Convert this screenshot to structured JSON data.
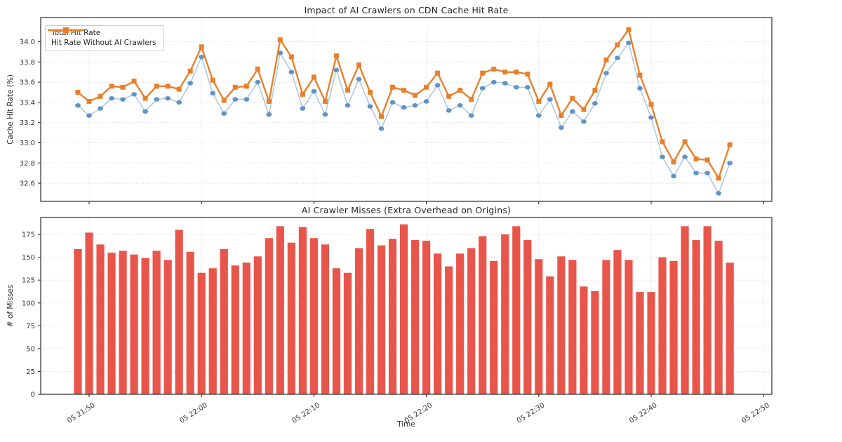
{
  "figure": {
    "background": "#ffffff",
    "spine_color": "#2a2a2a",
    "grid_color": "#c4c4c4",
    "tick_label_color": "#333333"
  },
  "chart_data": [
    {
      "type": "line",
      "title": "Impact of AI Crawlers on CDN Cache Hit Rate",
      "ylabel": "Cache Hit Rate (%)",
      "ylim": [
        32.42,
        34.24
      ],
      "yticks": [
        32.6,
        32.8,
        33.0,
        33.2,
        33.4,
        33.6,
        33.8,
        34.0
      ],
      "ytick_labels": [
        "32.6",
        "32.8",
        "33.0",
        "33.2",
        "33.4",
        "33.6",
        "33.8",
        "34.0"
      ],
      "x_tick_positions": [
        1,
        11,
        21,
        31,
        41,
        51,
        61
      ],
      "x_tick_labels": [
        "05 21:50",
        "05 22:00",
        "05 22:10",
        "05 22:20",
        "05 22:30",
        "05 22:40",
        "05 22:50"
      ],
      "grid": true,
      "legend_position": "upper left",
      "series": [
        {
          "name": "Total Hit Rate",
          "marker": "circle",
          "line_color": "#a5c3de",
          "marker_color": "#5f94c8",
          "line_width": 1.4,
          "values": [
            33.37,
            33.27,
            33.34,
            33.44,
            33.43,
            33.48,
            33.31,
            33.43,
            33.44,
            33.4,
            33.59,
            33.85,
            33.49,
            33.29,
            33.43,
            33.43,
            33.6,
            33.28,
            33.89,
            33.7,
            33.34,
            33.51,
            33.28,
            33.72,
            33.37,
            33.63,
            33.36,
            33.14,
            33.4,
            33.35,
            33.37,
            33.41,
            33.57,
            33.32,
            33.37,
            33.27,
            33.54,
            33.6,
            33.59,
            33.55,
            33.55,
            33.27,
            33.43,
            33.15,
            33.31,
            33.21,
            33.39,
            33.69,
            33.84,
            33.99,
            33.54,
            33.25,
            32.86,
            32.67,
            32.86,
            32.7,
            32.7,
            32.5,
            32.8
          ]
        },
        {
          "name": "Hit Rate Without AI Crawlers",
          "marker": "square",
          "line_color": "#e8802b",
          "marker_color": "#e8802b",
          "line_width": 2.4,
          "values": [
            33.5,
            33.41,
            33.46,
            33.56,
            33.55,
            33.61,
            33.44,
            33.56,
            33.56,
            33.53,
            33.71,
            33.95,
            33.62,
            33.42,
            33.55,
            33.56,
            33.73,
            33.41,
            34.02,
            33.85,
            33.48,
            33.65,
            33.41,
            33.86,
            33.52,
            33.77,
            33.5,
            33.26,
            33.55,
            33.52,
            33.47,
            33.55,
            33.69,
            33.46,
            33.52,
            33.43,
            33.69,
            33.73,
            33.7,
            33.7,
            33.68,
            33.41,
            33.58,
            33.27,
            33.44,
            33.33,
            33.52,
            33.82,
            33.97,
            34.12,
            33.67,
            33.38,
            33.01,
            32.81,
            33.01,
            32.84,
            32.83,
            32.65,
            32.98
          ]
        }
      ]
    },
    {
      "type": "bar",
      "title": "AI Crawler Misses (Extra Overhead on Origins)",
      "ylabel": "# of Misses",
      "xlabel": "Time",
      "ylim": [
        0,
        193.5
      ],
      "yticks": [
        0,
        25,
        50,
        75,
        100,
        125,
        150,
        175
      ],
      "ytick_labels": [
        "0",
        "25",
        "50",
        "75",
        "100",
        "125",
        "150",
        "175"
      ],
      "x_tick_positions": [
        1,
        11,
        21,
        31,
        41,
        51,
        61
      ],
      "x_tick_labels": [
        "05 21:50",
        "05 22:00",
        "05 22:10",
        "05 22:20",
        "05 22:30",
        "05 22:40",
        "05 22:50"
      ],
      "grid": true,
      "bar_color": "#e8564b",
      "values": [
        159,
        177,
        164,
        155,
        157,
        153,
        149,
        157,
        147,
        180,
        156,
        133,
        138,
        159,
        141,
        144,
        151,
        171,
        184,
        166,
        183,
        171,
        164,
        138,
        133,
        160,
        181,
        163,
        170,
        186,
        169,
        168,
        154,
        140,
        154,
        160,
        173,
        146,
        175,
        184,
        169,
        148,
        129,
        151,
        147,
        118,
        113,
        147,
        158,
        147,
        112,
        112,
        150,
        146,
        184,
        169,
        184,
        168,
        144
      ]
    }
  ]
}
